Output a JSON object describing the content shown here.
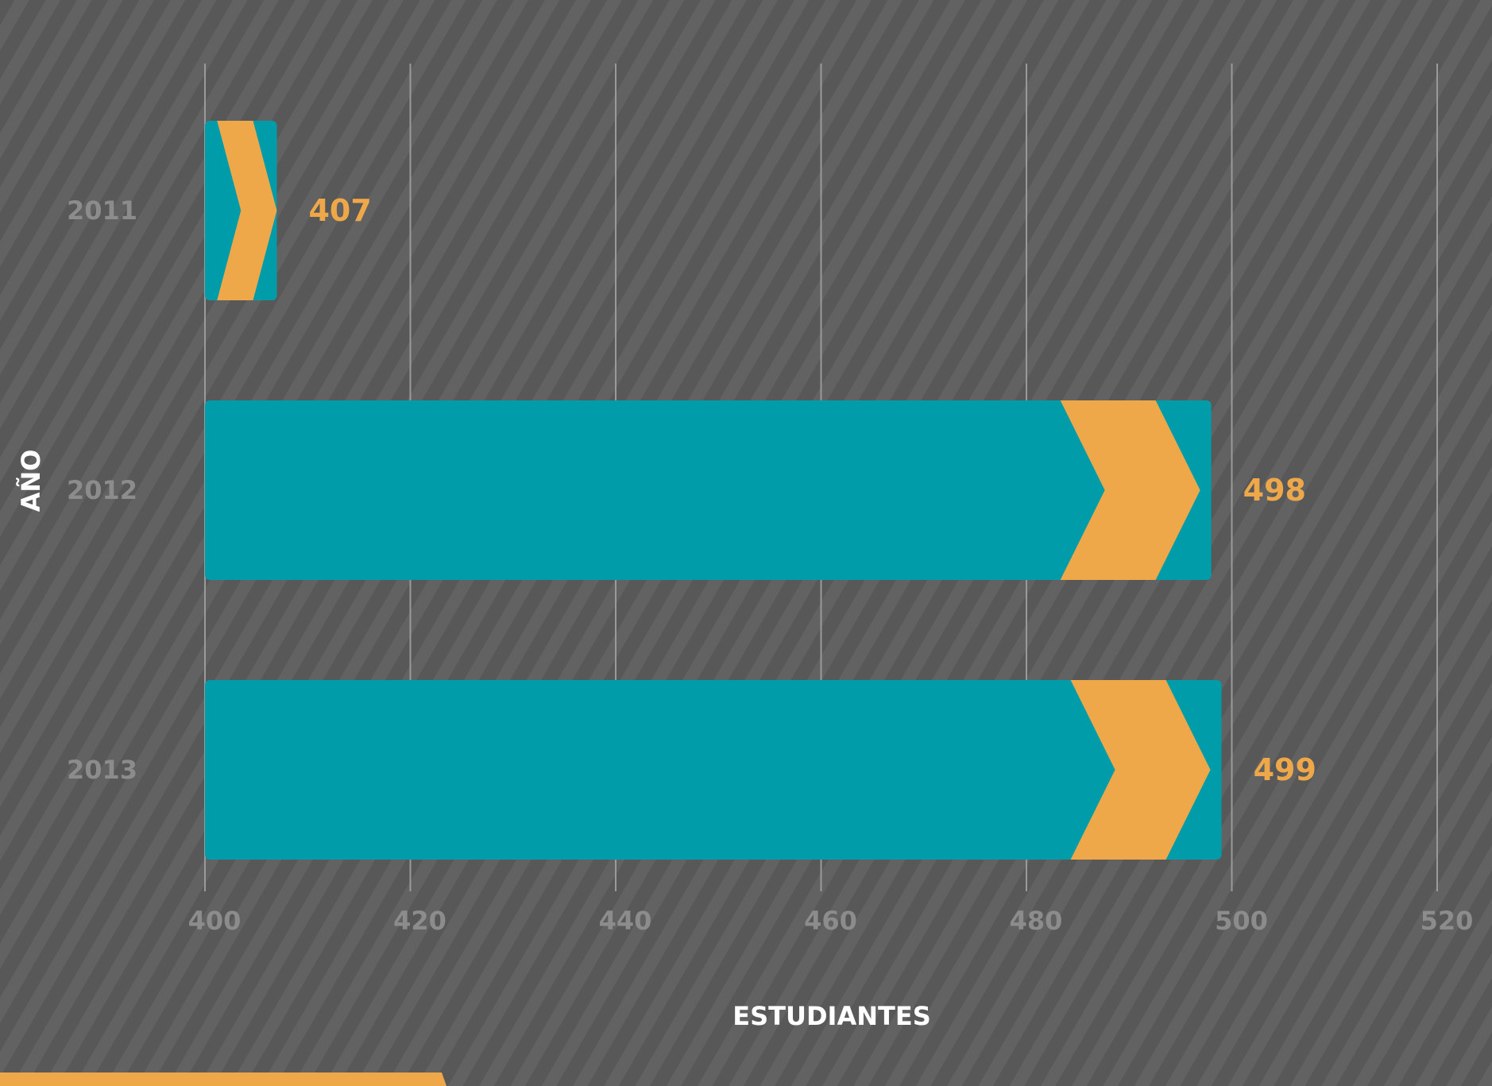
{
  "chart_data": {
    "type": "bar",
    "orientation": "horizontal",
    "categories": [
      "2011",
      "2012",
      "2013"
    ],
    "values": [
      407,
      498,
      499
    ],
    "data_labels": [
      "407",
      "498",
      "499"
    ],
    "xlabel": "ESTUDIANTES",
    "ylabel": "AÑO",
    "xlim": [
      400,
      520
    ],
    "xticks": [
      "400",
      "420",
      "440",
      "460",
      "480",
      "500",
      "520"
    ],
    "grid": true,
    "colors": {
      "bar": "#009ca9",
      "chevron": "#eea84a",
      "value_label": "#eea84a",
      "tick_label": "#8c8c8c",
      "grid": "#9a9a9a",
      "axis_title": "#ffffff"
    }
  }
}
